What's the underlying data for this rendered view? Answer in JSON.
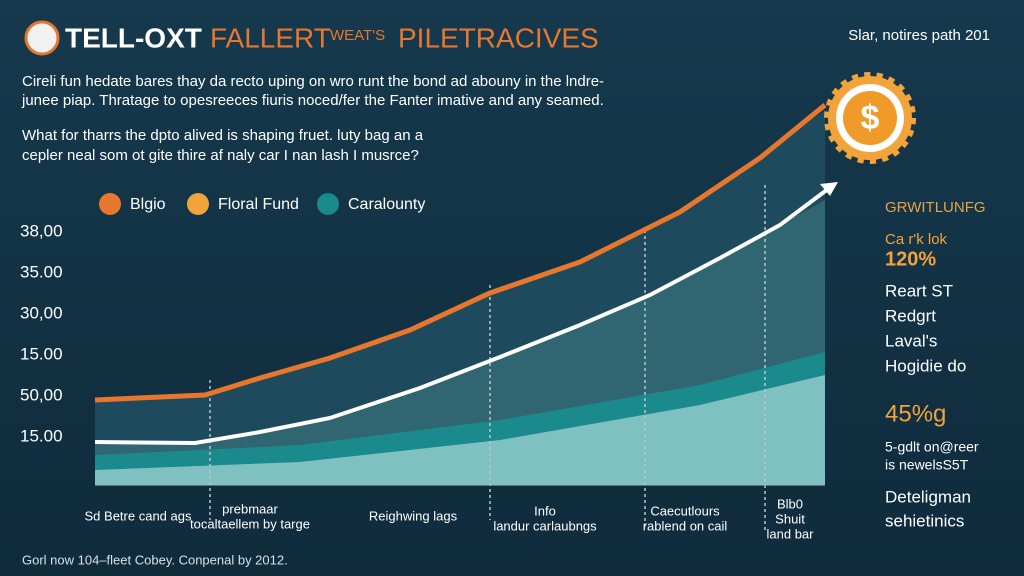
{
  "header": {
    "title_parts": [
      "TELL-OXT",
      "FALLERT",
      "WEAT'S",
      "PILETRACIVES"
    ],
    "top_note": "Slar, notires path 201"
  },
  "intro": {
    "lines": [
      "Cireli fun hedate bares thay da recto uping on wro runt the bond ad abouny in the lndre-",
      "junee piap. Thratage to opesreeces fiuris noced/fer the Fanter imative and any seamed."
    ]
  },
  "question": {
    "lines": [
      "What for tharrs the dpto alived is shaping fruet. luty bag an a",
      "cepler neal som ot gite thire af naly car I nan lash I musrce?"
    ]
  },
  "legend": [
    "Blgio",
    "Floral Fund",
    "Caralounty"
  ],
  "y_labels": [
    "38,00",
    "35.00",
    "30,00",
    "15.00",
    "50,00",
    "15.00"
  ],
  "x_labels": [
    [
      "Sd Betre cand ags"
    ],
    [
      "prebmaar",
      "tocaltaellem by targe"
    ],
    [
      "Reighwing lags"
    ],
    [
      "Info",
      "landur carlaubngs"
    ],
    [
      "Caecutlours",
      "rablend on cail"
    ],
    [
      "Blb0",
      "Shuit",
      "land bar"
    ]
  ],
  "coin_symbol": "$",
  "side": {
    "heading": "GRWITLUNFG",
    "stat_label": "Ca r'k lok",
    "stat": "120%",
    "items": [
      "Reart ST",
      "Redgrt",
      "Laval's",
      "Hogidie do"
    ],
    "stat2": "45%g",
    "notes": [
      "5-gdlt on@reer",
      "is newelsS5T"
    ],
    "tail": [
      "Deteligman",
      "sehietinics"
    ]
  },
  "footer": "Gorl now 104–fleet Cobey. Conpenal by 2012."
}
